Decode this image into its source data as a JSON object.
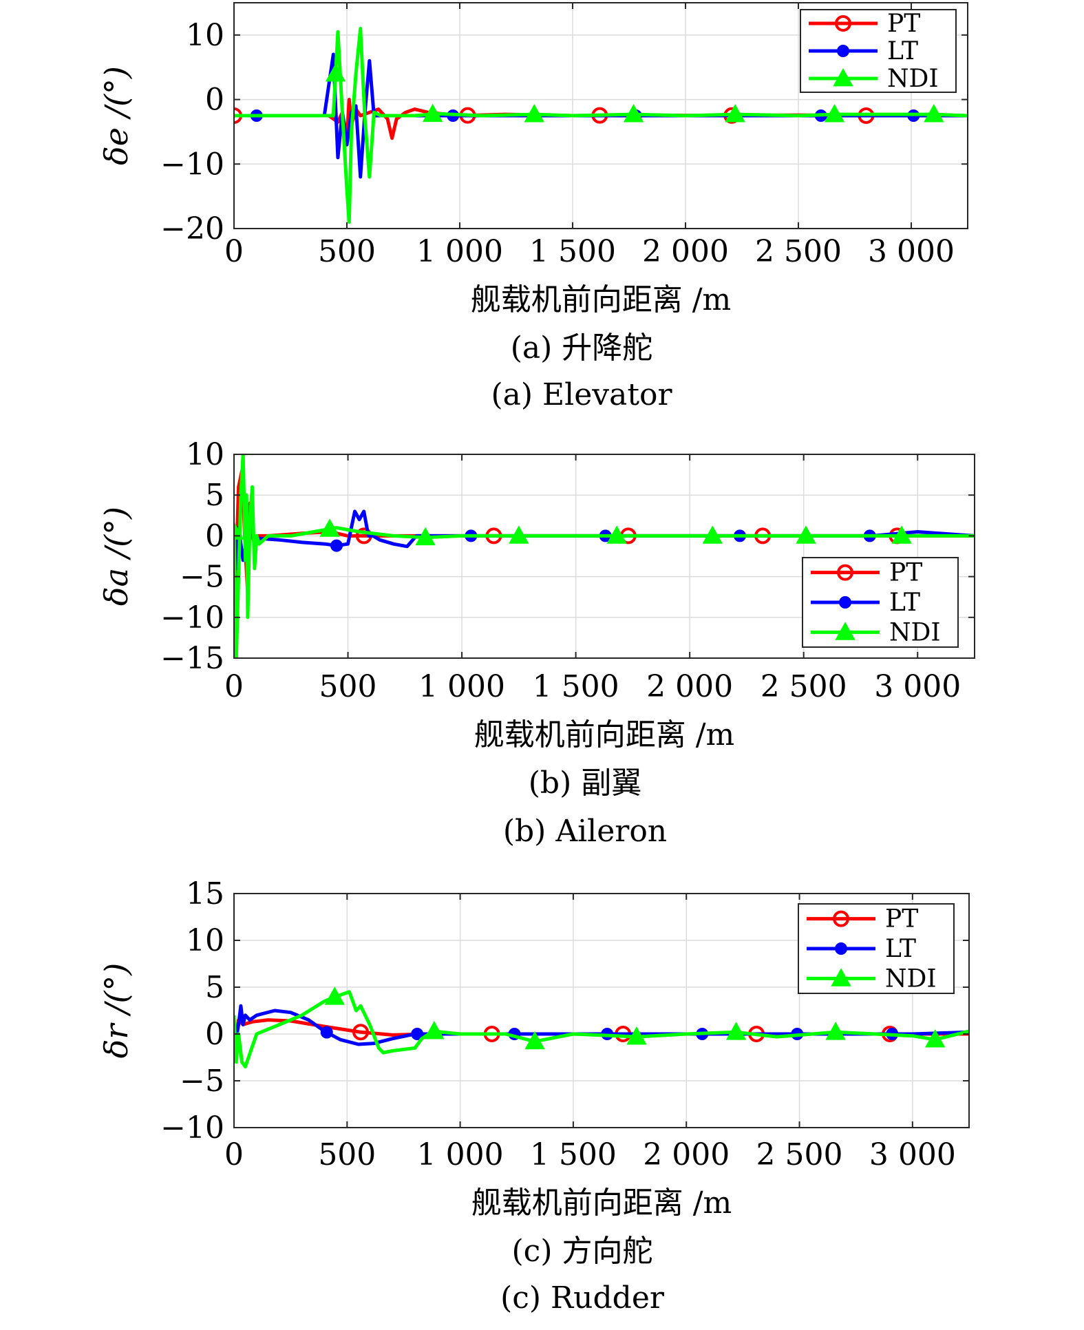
{
  "legend_labels": [
    "PT",
    "LT",
    "NDI"
  ],
  "colors": {
    "PT": "#ff0000",
    "LT": "#0000ff",
    "NDI": "#00ff00"
  },
  "chart_data": [
    {
      "type": "line",
      "ylabel": "δe /(°)",
      "xlabel": "舰载机前向距离 /m",
      "caption_cn": "(a) 升降舵",
      "caption_en": "(a) Elevator",
      "xlim": [
        0,
        3250
      ],
      "ylim": [
        -20,
        15
      ],
      "xticks": [
        0,
        500,
        1000,
        1500,
        2000,
        2500,
        3000
      ],
      "xtick_labels": [
        "0",
        "500",
        "1 000",
        "1 500",
        "2 000",
        "2 500",
        "3 000"
      ],
      "yticks": [
        -20,
        -10,
        0,
        10
      ],
      "ytick_labels": [
        "−20",
        "−10",
        "0",
        "10"
      ],
      "grid": true,
      "legend_position": "top-right",
      "series": [
        {
          "name": "PT",
          "marker": "circle",
          "x": [
            0,
            100,
            300,
            420,
            460,
            480,
            500,
            510,
            520,
            540,
            560,
            600,
            640,
            680,
            700,
            720,
            760,
            800,
            860,
            1000,
            1200,
            1500,
            1800,
            2100,
            2500,
            2800,
            3250
          ],
          "y": [
            -2.5,
            -2.5,
            -2.5,
            -2.5,
            -3.5,
            -2,
            -6,
            0,
            -4,
            -1.5,
            -2.5,
            -2,
            -1.5,
            -3,
            -6,
            -3,
            -2,
            -1.5,
            -2,
            -2.5,
            -2.3,
            -2.5,
            -2.4,
            -2.5,
            -2.4,
            -2.5,
            -2.5
          ],
          "markers_x": [
            0,
            1035,
            1620,
            2205,
            2800
          ]
        },
        {
          "name": "LT",
          "marker": "dot",
          "x": [
            0,
            100,
            300,
            400,
            440,
            460,
            480,
            500,
            520,
            540,
            560,
            580,
            600,
            620,
            660,
            700,
            760,
            800,
            1000,
            1500,
            2000,
            2500,
            3000,
            3250
          ],
          "y": [
            -2.5,
            -2.5,
            -2.5,
            -2.5,
            7,
            -9,
            -2,
            -7,
            -2,
            -1,
            -12,
            -2,
            6,
            -2.5,
            -2.5,
            -2.5,
            -2.5,
            -2.5,
            -2.5,
            -2.5,
            -2.5,
            -2.5,
            -2.5,
            -2.5
          ],
          "markers_x": [
            100,
            970,
            1780,
            2600,
            3010
          ]
        },
        {
          "name": "NDI",
          "marker": "triangle",
          "x": [
            0,
            200,
            400,
            440,
            460,
            480,
            500,
            510,
            520,
            540,
            560,
            580,
            600,
            620,
            650,
            700,
            800,
            900,
            1100,
            1330,
            1500,
            1770,
            2000,
            2220,
            2500,
            2660,
            3100,
            3250
          ],
          "y": [
            -2.5,
            -2.5,
            -2.5,
            -2.5,
            10.5,
            -2,
            -14,
            -19,
            -5,
            4,
            11,
            -3,
            -12,
            -2,
            -2.5,
            -2.5,
            -2.5,
            -2.2,
            -2.5,
            -2.3,
            -2.5,
            -2.3,
            -2.5,
            -2.3,
            -2.5,
            -2.3,
            -2.3,
            -2.5
          ],
          "markers_x": [
            450,
            880,
            1330,
            1770,
            2220,
            2660,
            3100
          ]
        }
      ]
    },
    {
      "type": "line",
      "ylabel": "δa /(°)",
      "xlabel": "舰载机前向距离 /m",
      "caption_cn": "(b) 副翼",
      "caption_en": "(b) Aileron",
      "xlim": [
        0,
        3250
      ],
      "ylim": [
        -15,
        10
      ],
      "xticks": [
        0,
        500,
        1000,
        1500,
        2000,
        2500,
        3000
      ],
      "xtick_labels": [
        "0",
        "500",
        "1 000",
        "1 500",
        "2 000",
        "2 500",
        "3 000"
      ],
      "yticks": [
        -15,
        -10,
        -5,
        0,
        5,
        10
      ],
      "ytick_labels": [
        "−15",
        "−10",
        "−5",
        "0",
        "5",
        "10"
      ],
      "grid": true,
      "legend_position": "bottom-right",
      "series": [
        {
          "name": "PT",
          "marker": "circle",
          "x": [
            0,
            10,
            20,
            35,
            50,
            60,
            70,
            80,
            90,
            100,
            150,
            300,
            420,
            500,
            600,
            800,
            1000,
            1300,
            1600,
            2000,
            2400,
            2800,
            3250
          ],
          "y": [
            -11,
            -3,
            6,
            8,
            -2,
            -7,
            4,
            0,
            -1,
            0,
            0,
            0.3,
            0.5,
            0,
            0,
            0,
            0,
            0,
            0,
            0,
            0,
            0,
            0
          ],
          "markers_x": [
            570,
            1140,
            1730,
            2320,
            2910
          ]
        },
        {
          "name": "LT",
          "marker": "dot",
          "x": [
            0,
            10,
            20,
            40,
            60,
            80,
            100,
            200,
            300,
            400,
            450,
            500,
            530,
            550,
            570,
            590,
            610,
            640,
            700,
            760,
            800,
            1000,
            1300,
            1600,
            2000,
            2400,
            2800,
            3000,
            3250
          ],
          "y": [
            1,
            -4,
            1,
            -3,
            0,
            0,
            -0.3,
            -0.5,
            -0.8,
            -1,
            -1.2,
            -1,
            3,
            2,
            3,
            0,
            0,
            -0.5,
            -1,
            -1.3,
            0,
            0,
            0,
            0,
            0,
            0,
            0,
            0.5,
            0
          ],
          "markers_x": [
            450,
            1040,
            1630,
            2220,
            2790
          ]
        },
        {
          "name": "NDI",
          "marker": "triangle",
          "x": [
            0,
            10,
            20,
            30,
            40,
            50,
            55,
            60,
            70,
            80,
            90,
            100,
            110,
            150,
            250,
            350,
            450,
            550,
            700,
            840,
            1000,
            1200,
            1400,
            1700,
            2100,
            2500,
            2950,
            3250
          ],
          "y": [
            0.5,
            -15,
            -5,
            5,
            10,
            -3,
            5,
            -10,
            2,
            6,
            -4,
            0,
            -1,
            0,
            0,
            0.5,
            1,
            0.5,
            0,
            -0.2,
            0,
            0,
            0,
            0,
            0,
            0,
            0,
            0
          ],
          "markers_x": [
            0,
            420,
            840,
            1250,
            1680,
            2100,
            2510,
            2930
          ]
        }
      ]
    },
    {
      "type": "line",
      "ylabel": "δr /(°)",
      "xlabel": "舰载机前向距离 /m",
      "caption_cn": "(c) 方向舵",
      "caption_en": "(c) Rudder",
      "xlim": [
        0,
        3250
      ],
      "ylim": [
        -10,
        15
      ],
      "xticks": [
        0,
        500,
        1000,
        1500,
        2000,
        2500,
        3000
      ],
      "xtick_labels": [
        "0",
        "500",
        "1 000",
        "1 500",
        "2 000",
        "2 500",
        "3 000"
      ],
      "yticks": [
        -10,
        -5,
        0,
        5,
        10,
        15
      ],
      "ytick_labels": [
        "−10",
        "−5",
        "0",
        "5",
        "10",
        "15"
      ],
      "grid": true,
      "legend_position": "top-right",
      "series": [
        {
          "name": "PT",
          "marker": "circle",
          "x": [
            0,
            20,
            40,
            80,
            150,
            250,
            400,
            560,
            700,
            850,
            1000,
            1500,
            2000,
            2500,
            3000,
            3250
          ],
          "y": [
            -2,
            1.5,
            1,
            1.3,
            1.5,
            1.4,
            0.8,
            0.2,
            -0.1,
            0,
            0,
            0,
            0,
            0,
            0,
            0
          ],
          "markers_x": [
            560,
            1140,
            1720,
            2310,
            2900
          ]
        },
        {
          "name": "LT",
          "marker": "dot",
          "x": [
            0,
            20,
            30,
            40,
            50,
            70,
            100,
            180,
            250,
            330,
            400,
            470,
            550,
            620,
            700,
            800,
            900,
            1200,
            1600,
            2000,
            2500,
            3000,
            3250
          ],
          "y": [
            -2,
            1,
            3,
            1,
            2,
            1.5,
            2,
            2.5,
            2.3,
            1.5,
            0.3,
            -0.6,
            -1.1,
            -1,
            -0.5,
            0,
            0,
            0,
            0,
            0,
            0,
            0,
            0.2
          ],
          "markers_x": [
            410,
            810,
            1240,
            1650,
            2070,
            2490,
            2910
          ]
        },
        {
          "name": "NDI",
          "marker": "triangle",
          "x": [
            0,
            10,
            20,
            35,
            50,
            100,
            200,
            300,
            400,
            450,
            510,
            540,
            560,
            600,
            640,
            660,
            700,
            800,
            830,
            880,
            1000,
            1200,
            1330,
            1500,
            1780,
            2000,
            2220,
            2400,
            2660,
            3000,
            3100,
            3250
          ],
          "y": [
            2,
            -3,
            0,
            -3,
            -3.5,
            0,
            1,
            2,
            3.5,
            4,
            4.5,
            2.5,
            3,
            1,
            -1.5,
            -2,
            -1.8,
            -1.5,
            -0.5,
            0.3,
            0,
            0,
            -0.8,
            0,
            -0.3,
            0,
            0.2,
            -0.3,
            0.2,
            -0.2,
            -0.6,
            0.3
          ],
          "markers_x": [
            445,
            885,
            1330,
            1780,
            2220,
            2660,
            3100
          ]
        }
      ]
    }
  ]
}
